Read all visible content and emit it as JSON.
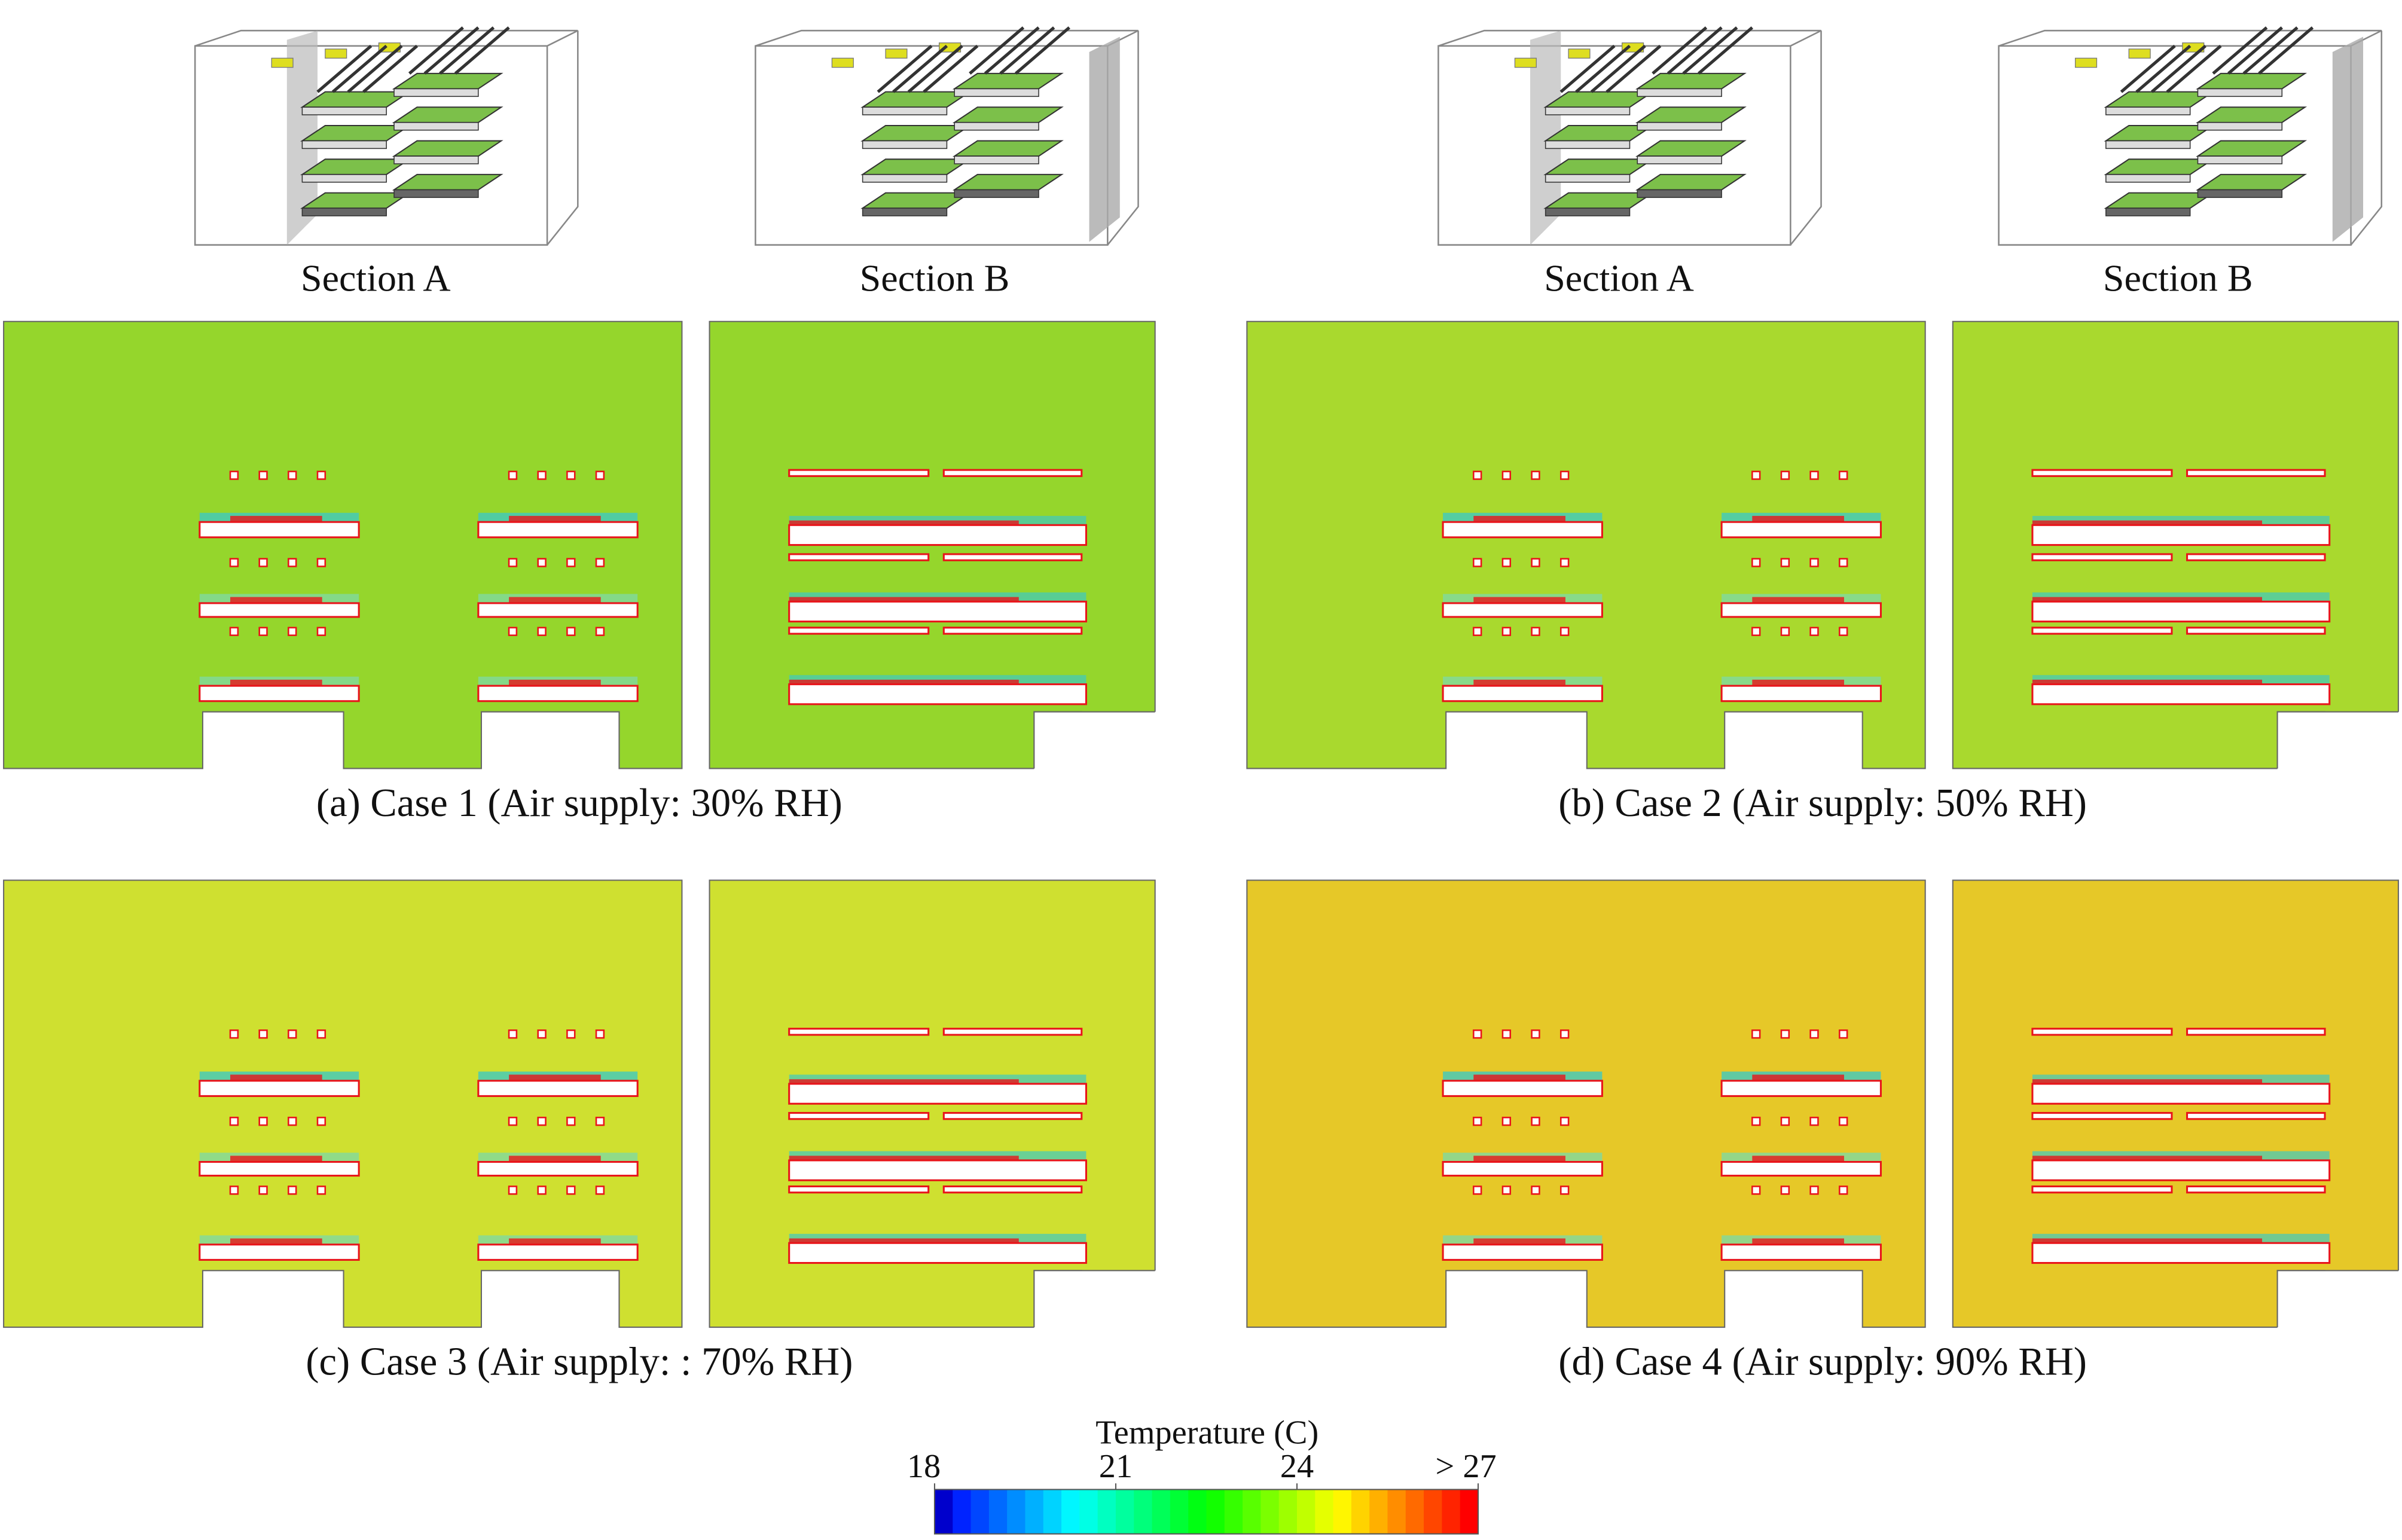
{
  "cases": [
    {
      "section_a": "Section A",
      "section_b": "Section B",
      "caption": "(a) Case 1 (Air supply: 30% RH)",
      "color": "#95d62c"
    },
    {
      "section_a": "Section A",
      "section_b": "Section B",
      "caption": "(b) Case 2 (Air supply: 50% RH)",
      "color": "#a9d92e"
    },
    {
      "section_a": "Section A",
      "section_b": "Section B",
      "caption": "(c) Case 3 (Air supply: : 70% RH)",
      "color": "#cfe030"
    },
    {
      "section_a": "Section A",
      "section_b": "Section B",
      "caption": "(d) Case 4 (Air supply: 90% RH)",
      "color": "#e6c828"
    }
  ],
  "colorbar": {
    "title": "Temperature (C)",
    "min": 18,
    "max": 27,
    "ticks": [
      18,
      21,
      24,
      {
        "value": 27,
        "label": "> 27"
      }
    ]
  }
}
